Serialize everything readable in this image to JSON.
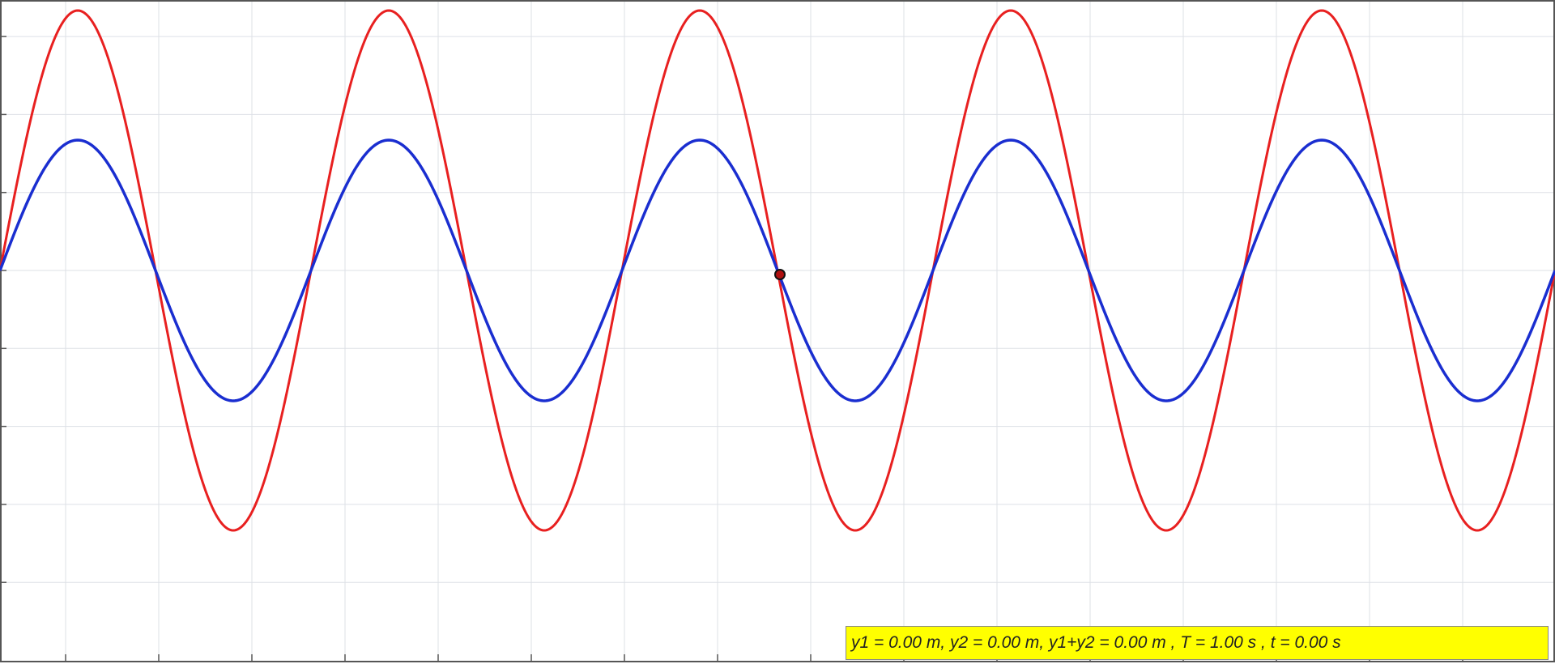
{
  "status": {
    "text": "y1 = 0.00 m, y2 = 0.00 m, y1+y2 = 0.00 m , T = 1.00 s , t = 0.00 s"
  }
}
